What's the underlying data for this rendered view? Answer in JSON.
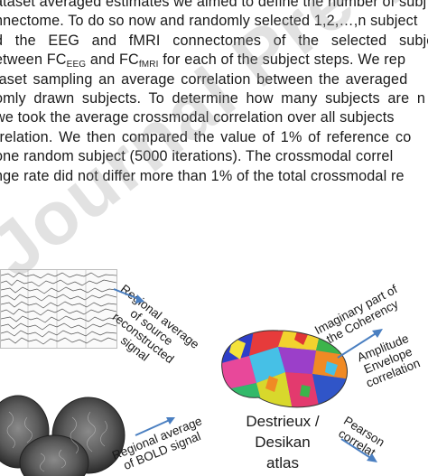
{
  "paragraph": {
    "line0": "ataset averaged estimates we aimed to define the number of subj",
    "line1": "nnectome. To do so now and randomly selected 1,2,…,n subject",
    "line2": "d the EEG and fMRI connectomes of the selected subject",
    "line3_a": "etween FC",
    "line3_sub1": "EEG",
    "line3_b": " and FC",
    "line3_sub2": "fMRI",
    "line3_c": " for each of the subject steps. We rep",
    "line4": "taset sampling an average correlation between the averaged",
    "line5": "omly drawn subjects. To determine how many subjects are n",
    "line6": "we took the average crossmodal correlation over all subjects",
    "line7": "rrelation. We then compared the value of 1% of reference co",
    "line8": "one random subject (5000 iterations). The crossmodal correl",
    "line9": "nge rate did not differ more than 1% of the total crossmodal re"
  },
  "figure": {
    "label_eeg": [
      "Regional average",
      "of source",
      "reconstructed",
      "signal"
    ],
    "label_bold": [
      "Regional average",
      "of BOLD signal"
    ],
    "label_coherency": [
      "Imaginary part of",
      "the Coherency"
    ],
    "label_amplitude": [
      "Amplitude",
      "Envelope",
      "correlation"
    ],
    "label_pearson": [
      "Pearson",
      "correlat"
    ],
    "atlas": [
      "Destrieux /",
      "Desikan",
      "atlas"
    ]
  },
  "watermark": "Journal Pre-proof",
  "colors": {
    "arrow": "#4a7fc1",
    "text": "#1a1a1a"
  }
}
